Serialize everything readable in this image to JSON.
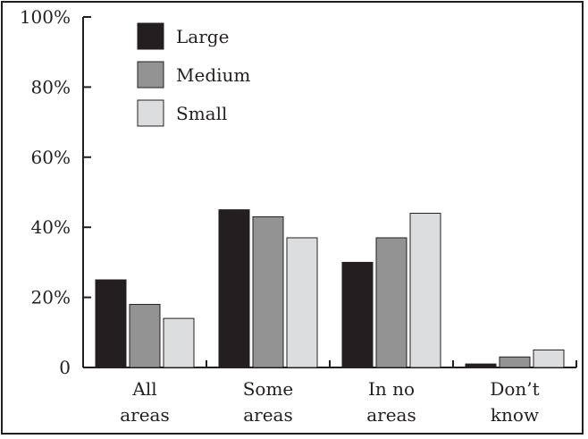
{
  "chart_data": {
    "type": "bar",
    "categories": [
      [
        "All",
        "areas"
      ],
      [
        "Some",
        "areas"
      ],
      [
        "In no",
        "areas"
      ],
      [
        "Don’t",
        "know"
      ]
    ],
    "series": [
      {
        "name": "Large",
        "values": [
          25,
          45,
          30,
          1
        ],
        "color": "#231f20"
      },
      {
        "name": "Medium",
        "values": [
          18,
          43,
          37,
          3
        ],
        "color": "#939393"
      },
      {
        "name": "Small",
        "values": [
          14,
          37,
          44,
          5
        ],
        "color": "#dcdddf"
      }
    ],
    "yticks": [
      "0",
      "20%",
      "40%",
      "60%",
      "80%",
      "100%"
    ],
    "ylim": [
      0,
      100
    ],
    "grid": false,
    "legend": "top-left"
  }
}
